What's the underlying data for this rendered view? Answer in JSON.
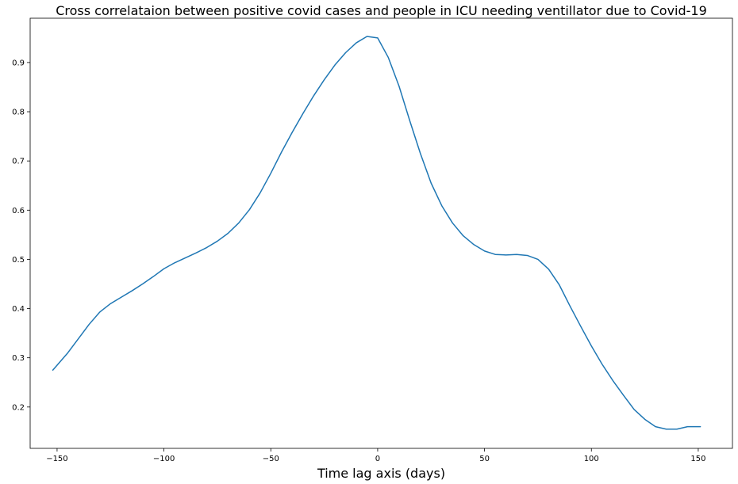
{
  "chart_data": {
    "type": "line",
    "title": "Cross correlataion between positive covid cases and people in ICU needing ventillator due to Covid-19",
    "xlabel": "Time lag axis (days)",
    "ylabel": "",
    "xlim": [
      -162.6,
      166
    ],
    "ylim": [
      0.116,
      0.99
    ],
    "xticks": [
      -150,
      -100,
      -50,
      0,
      50,
      100,
      150
    ],
    "xtick_labels": [
      "−150",
      "−100",
      "−50",
      "0",
      "50",
      "100",
      "150"
    ],
    "yticks": [
      0.2,
      0.3,
      0.4,
      0.5,
      0.6,
      0.7,
      0.8,
      0.9
    ],
    "ytick_labels": [
      "0.2",
      "0.3",
      "0.4",
      "0.5",
      "0.6",
      "0.7",
      "0.8",
      "0.9"
    ],
    "grid": false,
    "legend": "none",
    "series": [
      {
        "color": "#1f77b4",
        "x": [
          -152,
          -145,
          -140,
          -135,
          -130,
          -125,
          -120,
          -115,
          -110,
          -105,
          -100,
          -95,
          -90,
          -85,
          -80,
          -75,
          -70,
          -65,
          -60,
          -55,
          -50,
          -45,
          -40,
          -35,
          -30,
          -25,
          -20,
          -15,
          -10,
          -5,
          0,
          5,
          10,
          15,
          20,
          25,
          30,
          35,
          40,
          45,
          50,
          55,
          60,
          65,
          70,
          75,
          80,
          85,
          90,
          95,
          100,
          105,
          110,
          115,
          120,
          125,
          130,
          135,
          140,
          145,
          151
        ],
        "y": [
          0.275,
          0.31,
          0.339,
          0.368,
          0.393,
          0.41,
          0.423,
          0.436,
          0.45,
          0.465,
          0.481,
          0.493,
          0.503,
          0.513,
          0.524,
          0.537,
          0.553,
          0.574,
          0.601,
          0.635,
          0.675,
          0.718,
          0.758,
          0.796,
          0.832,
          0.865,
          0.895,
          0.92,
          0.94,
          0.953,
          0.95,
          0.91,
          0.852,
          0.782,
          0.715,
          0.655,
          0.609,
          0.574,
          0.548,
          0.53,
          0.517,
          0.51,
          0.509,
          0.51,
          0.508,
          0.5,
          0.48,
          0.448,
          0.405,
          0.364,
          0.324,
          0.287,
          0.254,
          0.224,
          0.195,
          0.175,
          0.16,
          0.155,
          0.155,
          0.16,
          0.16
        ]
      }
    ]
  }
}
